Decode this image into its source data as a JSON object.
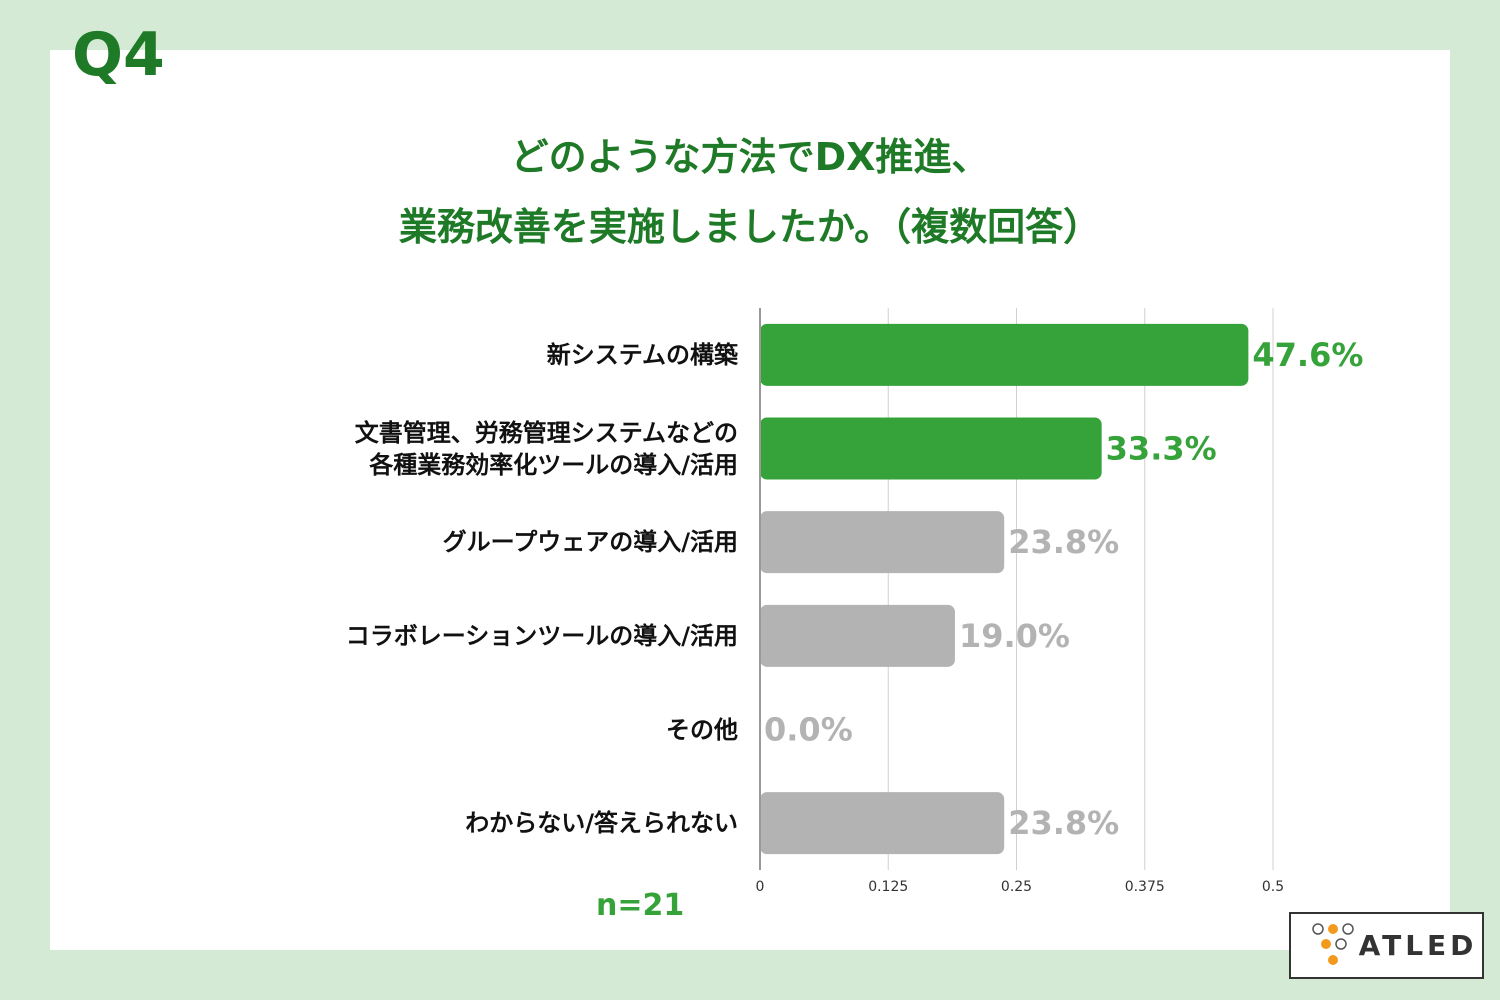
{
  "badge": "Q4",
  "logo": "ATLED",
  "chart_data": {
    "type": "bar",
    "orientation": "horizontal",
    "title": "どのような方法でDX推進、\n業務改善を実施しましたか。（複数回答）",
    "categories": [
      "新システムの構築",
      "文書管理、労務管理システムなどの\n各種業務効率化ツールの導入/活用",
      "グループウェアの導入/活用",
      "コラボレーションツールの導入/活用",
      "その他",
      "わからない/答えられない"
    ],
    "values": [
      0.476,
      0.333,
      0.238,
      0.19,
      0,
      0.238
    ],
    "value_labels": [
      "47.6%",
      "33.3%",
      "23.8%",
      "19.0%",
      "0.0%",
      "23.8%"
    ],
    "colors": [
      "#35a33a",
      "#35a33a",
      "#b3b3b3",
      "#b3b3b3",
      "#b3b3b3",
      "#b3b3b3"
    ],
    "xlim": [
      0,
      0.5
    ],
    "xticks": [
      0,
      0.125,
      0.25,
      0.375,
      0.5
    ],
    "grid": true,
    "annotation": "n=21"
  }
}
